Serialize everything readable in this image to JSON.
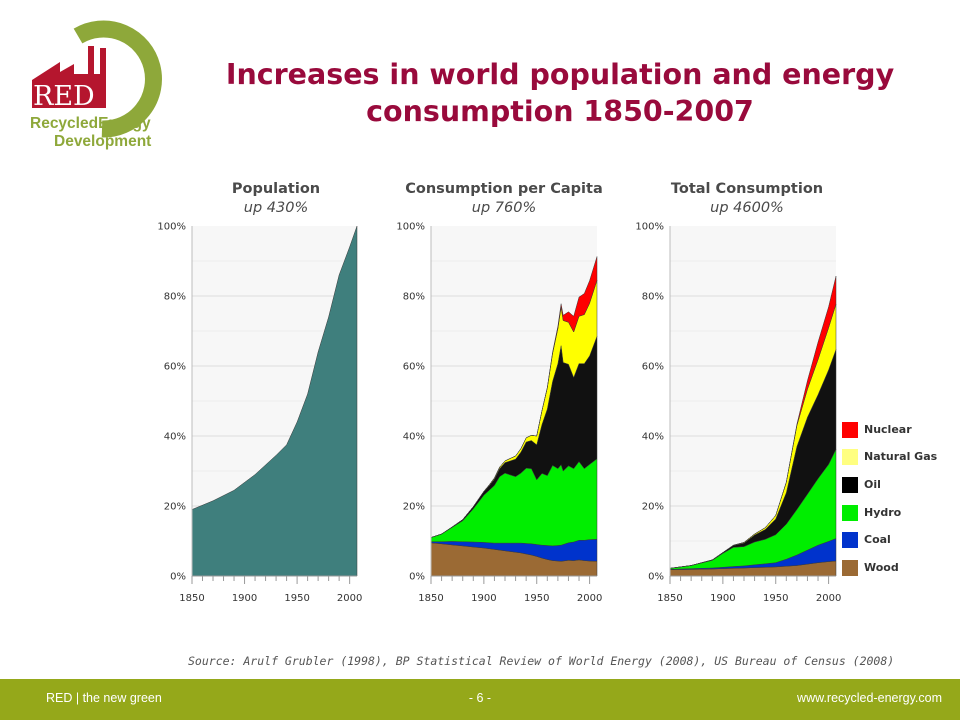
{
  "logo": {
    "abbr": "RED",
    "line1": "RecycledEnergy",
    "line2": "Development"
  },
  "title": "Increases in world population and energy consumption 1850-2007",
  "colors": {
    "title": "#990a3c",
    "population": "#3f7f7d",
    "nuclear": "#ff0000",
    "natural_gas": "#ffff00",
    "oil": "#111111",
    "hydro": "#00ee00",
    "coal": "#0033cc",
    "wood": "#9b6a34",
    "footer": "#95a81a",
    "logo_red": "#b5162e",
    "logo_green": "#8ea83a"
  },
  "chart_data": [
    {
      "type": "area",
      "title": "Population",
      "subtitle": "up 430%",
      "x_ticks": [
        "1850",
        "1900",
        "1950",
        "2000"
      ],
      "y_ticks": [
        "0%",
        "20%",
        "40%",
        "60%",
        "80%",
        "100%"
      ],
      "xlim": [
        1850,
        2007
      ],
      "ylim": [
        0,
        100
      ],
      "grid": true,
      "x": [
        1850,
        1870,
        1890,
        1910,
        1930,
        1940,
        1950,
        1960,
        1970,
        1980,
        1990,
        2000,
        2007
      ],
      "series": [
        {
          "name": "Population",
          "values": [
            19,
            21.5,
            24.5,
            29,
            34.5,
            37.5,
            44,
            52,
            64,
            74,
            86,
            94,
            100
          ]
        }
      ]
    },
    {
      "type": "area",
      "title": "Consumption per Capita",
      "subtitle": "up 760%",
      "x_ticks": [
        "1850",
        "1900",
        "1950",
        "2000"
      ],
      "y_ticks": [
        "0%",
        "20%",
        "40%",
        "60%",
        "80%",
        "100%"
      ],
      "xlim": [
        1850,
        2007
      ],
      "ylim": [
        0,
        100
      ],
      "grid": true,
      "x": [
        1850,
        1860,
        1870,
        1880,
        1890,
        1900,
        1905,
        1910,
        1915,
        1920,
        1925,
        1930,
        1935,
        1940,
        1945,
        1950,
        1955,
        1960,
        1965,
        1970,
        1973,
        1975,
        1980,
        1985,
        1990,
        1995,
        2000,
        2007
      ],
      "series": [
        {
          "name": "Wood",
          "values": [
            9.5,
            9.2,
            8.9,
            8.6,
            8.3,
            8,
            7.8,
            7.6,
            7.4,
            7.2,
            7,
            6.8,
            6.6,
            6.3,
            6,
            5.6,
            5.1,
            4.7,
            4.4,
            4.3,
            4.2,
            4.3,
            4.5,
            4.4,
            4.6,
            4.4,
            4.3,
            4.2
          ]
        },
        {
          "name": "Coal",
          "values": [
            0.3,
            0.6,
            1,
            1.2,
            1.4,
            1.6,
            1.7,
            1.8,
            2,
            2.2,
            2.4,
            2.6,
            2.8,
            3,
            3.2,
            3.4,
            3.7,
            4,
            4.2,
            4.4,
            4.6,
            4.7,
            5,
            5.3,
            5.6,
            5.8,
            6.1,
            6.3
          ]
        },
        {
          "name": "Hydro",
          "values": [
            1.2,
            2.2,
            4,
            6,
            9.5,
            13.5,
            15,
            16.5,
            19,
            20,
            19.5,
            19,
            20,
            21.5,
            21.5,
            18.5,
            20.5,
            20,
            23,
            22,
            23,
            21,
            22,
            21,
            22.5,
            20.5,
            21.5,
            23
          ]
        },
        {
          "name": "Oil",
          "values": [
            0,
            0,
            0.1,
            0.3,
            0.6,
            1,
            1.3,
            1.8,
            2.3,
            3,
            4,
            5,
            6,
            7.5,
            8,
            10,
            14,
            19,
            24,
            30,
            34,
            31,
            29,
            26,
            28,
            30,
            31,
            35
          ]
        },
        {
          "name": "Natural Gas",
          "values": [
            0,
            0,
            0,
            0,
            0,
            0.1,
            0.2,
            0.3,
            0.4,
            0.5,
            0.7,
            0.9,
            1,
            1.2,
            1.5,
            2.5,
            4,
            6,
            8,
            10,
            11,
            12,
            12,
            13,
            13.5,
            14,
            15,
            16
          ]
        },
        {
          "name": "Nuclear",
          "values": [
            0,
            0,
            0,
            0,
            0,
            0,
            0,
            0,
            0,
            0,
            0,
            0,
            0,
            0,
            0,
            0,
            0,
            0.2,
            0.4,
            0.7,
            1,
            1.5,
            3,
            4.5,
            5.5,
            6,
            6.5,
            6.8
          ]
        }
      ]
    },
    {
      "type": "area",
      "title": "Total Consumption",
      "subtitle": "up 4600%",
      "x_ticks": [
        "1850",
        "1900",
        "1950",
        "2000"
      ],
      "y_ticks": [
        "0%",
        "20%",
        "40%",
        "60%",
        "80%",
        "100%"
      ],
      "xlim": [
        1850,
        2007
      ],
      "ylim": [
        0,
        100
      ],
      "grid": true,
      "x": [
        1850,
        1870,
        1890,
        1900,
        1910,
        1920,
        1930,
        1940,
        1950,
        1960,
        1970,
        1980,
        1990,
        2000,
        2007
      ],
      "series": [
        {
          "name": "Wood",
          "values": [
            1.8,
            1.9,
            2,
            2.1,
            2.2,
            2.3,
            2.4,
            2.5,
            2.6,
            2.8,
            3,
            3.4,
            3.8,
            4.1,
            4.3
          ]
        },
        {
          "name": "Coal",
          "values": [
            0.1,
            0.2,
            0.3,
            0.4,
            0.5,
            0.6,
            0.8,
            1,
            1.2,
            2,
            3,
            4,
            5,
            5.8,
            6.4
          ]
        },
        {
          "name": "Hydro",
          "values": [
            0.3,
            0.9,
            2.2,
            4,
            5.5,
            5.5,
            6.5,
            7,
            8,
            10,
            13,
            16,
            19,
            22,
            25.5
          ]
        },
        {
          "name": "Oil",
          "values": [
            0,
            0,
            0.1,
            0.2,
            0.5,
            1,
            2,
            2.8,
            4.5,
            9,
            18,
            22,
            24,
            27,
            28.5
          ]
        },
        {
          "name": "Natural Gas",
          "values": [
            0,
            0,
            0,
            0,
            0.1,
            0.2,
            0.3,
            0.5,
            1,
            3,
            6,
            8,
            10,
            12,
            13
          ]
        },
        {
          "name": "Nuclear",
          "values": [
            0,
            0,
            0,
            0,
            0,
            0,
            0,
            0,
            0,
            0,
            0.4,
            2.5,
            5,
            6,
            8
          ]
        }
      ]
    }
  ],
  "legend": [
    {
      "name": "Nuclear",
      "color": "#ff0000"
    },
    {
      "name": "Natural Gas",
      "color": "#ffff80"
    },
    {
      "name": "Oil",
      "color": "#000000"
    },
    {
      "name": "Hydro",
      "color": "#00ee00"
    },
    {
      "name": "Coal",
      "color": "#0033cc"
    },
    {
      "name": "Wood",
      "color": "#9b6a34"
    }
  ],
  "source": "Source: Arulf Grubler (1998), BP Statistical Review of World Energy (2008), US Bureau of Census (2008)",
  "footer": {
    "left": "RED | the new green",
    "center": "- 6 -",
    "right": "www.recycled-energy.com"
  }
}
